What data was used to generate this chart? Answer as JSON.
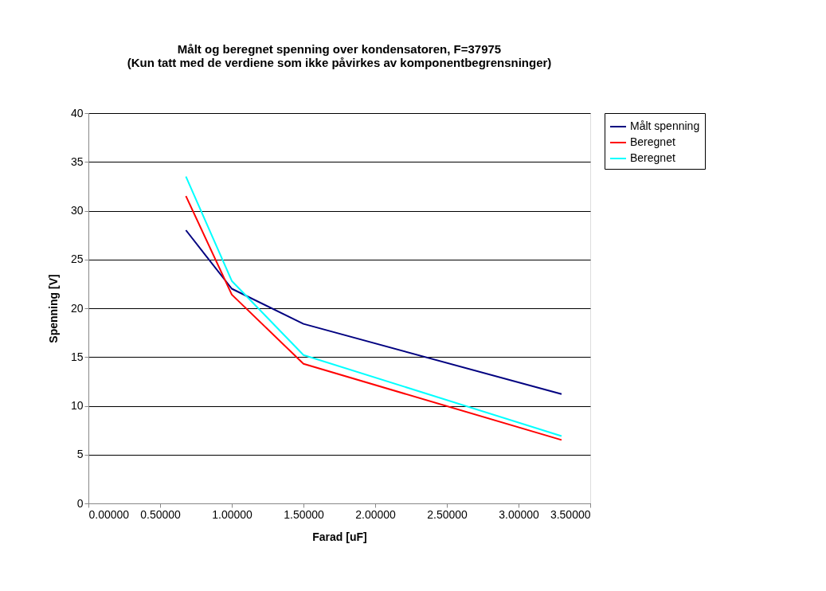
{
  "chart_data": {
    "type": "line",
    "title": [
      "Målt og beregnet spenning over kondensatoren, F=37975",
      "(Kun tatt med de verdiene som ikke påvirkes av komponentbegrensninger)"
    ],
    "xlabel": "Farad [uF]",
    "ylabel": "Spenning [V]",
    "x": [
      0.68,
      1.0,
      1.5,
      3.3
    ],
    "series": [
      {
        "name": "Målt spenning",
        "color": "#000080",
        "values": [
          28.0,
          22.0,
          18.4,
          11.2
        ]
      },
      {
        "name": "Beregnet",
        "color": "#ff0000",
        "values": [
          31.5,
          21.4,
          14.3,
          6.5
        ]
      },
      {
        "name": "Beregnet",
        "color": "#00ffff",
        "values": [
          33.5,
          22.8,
          15.2,
          6.9
        ]
      }
    ],
    "xlim": [
      0,
      3.5
    ],
    "xticks": [
      {
        "value": 0,
        "label": "0.00000"
      },
      {
        "value": 0.5,
        "label": "0.50000"
      },
      {
        "value": 1,
        "label": "1.00000"
      },
      {
        "value": 1.5,
        "label": "1.50000"
      },
      {
        "value": 2,
        "label": "2.00000"
      },
      {
        "value": 2.5,
        "label": "2.50000"
      },
      {
        "value": 3,
        "label": "3.00000"
      },
      {
        "value": 3.5,
        "label": "3.50000"
      }
    ],
    "ylim": [
      0,
      40
    ],
    "yticks": [
      0,
      5,
      10,
      15,
      20,
      25,
      30,
      35,
      40
    ],
    "grid": "y",
    "legend": "right",
    "marker": "none",
    "line_style": "solid"
  }
}
